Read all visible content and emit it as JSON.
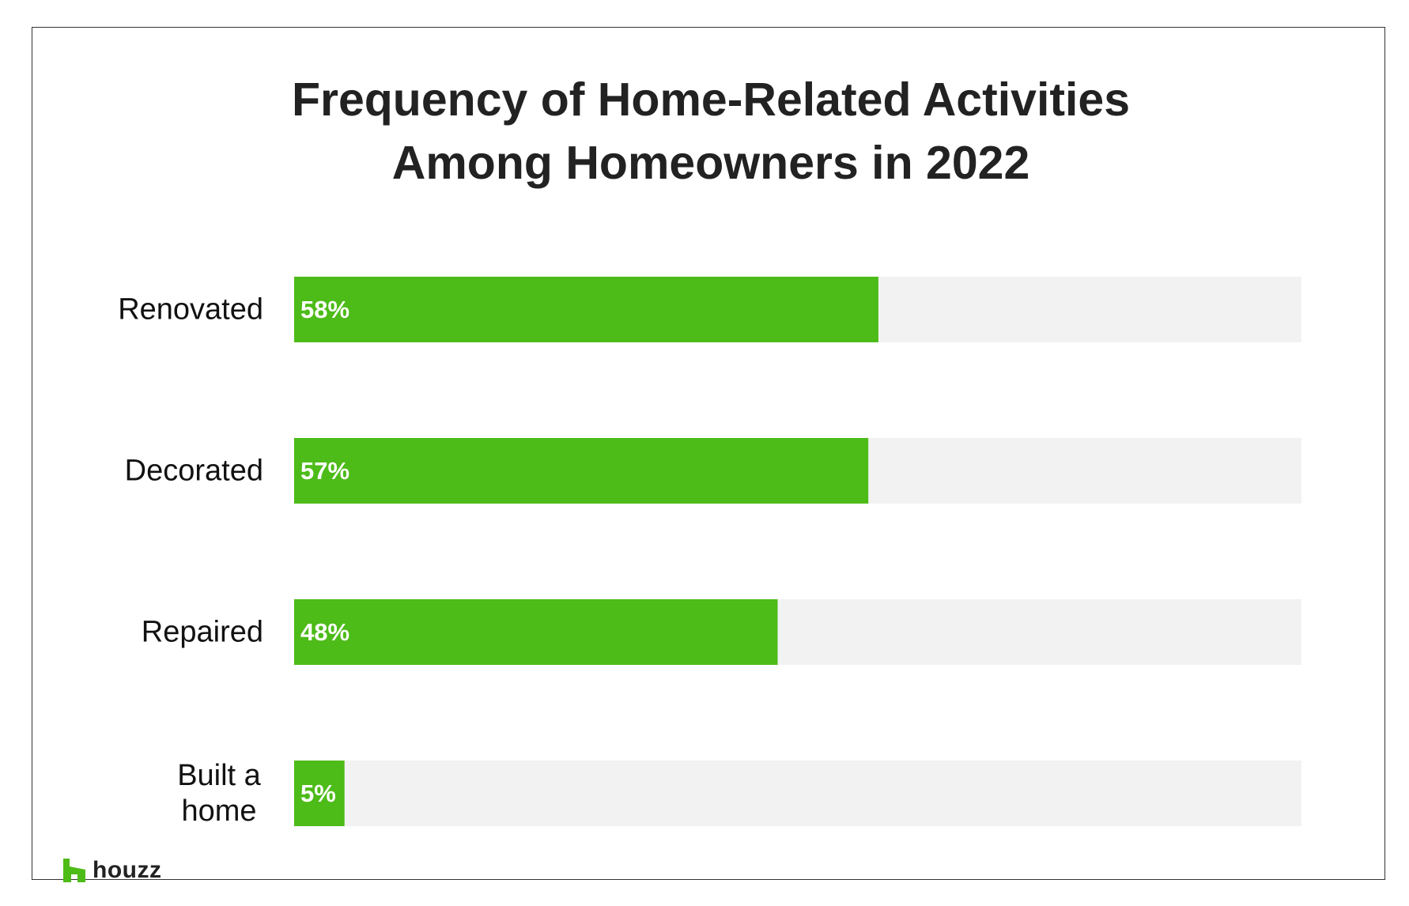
{
  "colors": {
    "bar_fill": "#4dbb18",
    "bar_track": "#f2f2f2",
    "title_text": "#222222",
    "label_text": "#111111",
    "value_text": "#ffffff",
    "brand_green": "#4dbb18"
  },
  "brand": {
    "name": "houzz",
    "icon": "houzz-logo-icon"
  },
  "chart_data": {
    "type": "bar",
    "orientation": "horizontal",
    "title": "Frequency of Home-Related Activities Among Homeowners in 2022",
    "title_lines": [
      "Frequency of Home-Related Activities",
      "Among Homeowners in 2022"
    ],
    "categories": [
      "Renovated",
      "Decorated",
      "Repaired",
      "Built a home"
    ],
    "category_lines": [
      [
        "Renovated"
      ],
      [
        "Decorated"
      ],
      [
        "Repaired"
      ],
      [
        "Built a",
        "home"
      ]
    ],
    "values": [
      58,
      57,
      48,
      5
    ],
    "value_labels": [
      "58%",
      "57%",
      "48%",
      "5%"
    ],
    "unit": "%",
    "xlim": [
      0,
      100
    ],
    "xlabel": "",
    "ylabel": "",
    "grid": false,
    "legend": "none"
  }
}
